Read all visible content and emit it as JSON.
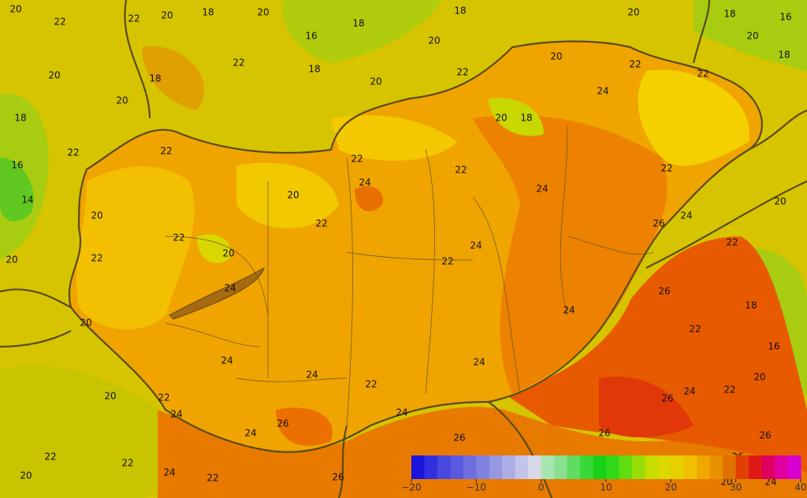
{
  "contour_labels": [
    20,
    22,
    22,
    20,
    18,
    20,
    18,
    18,
    20,
    18,
    16,
    16,
    20,
    20,
    18,
    20,
    22,
    22,
    18,
    22,
    22,
    20,
    18,
    20,
    24,
    20,
    18,
    20,
    18,
    22,
    22,
    22,
    22,
    22,
    16,
    24,
    24,
    20,
    14,
    20,
    20,
    24,
    26,
    22,
    22,
    22,
    24,
    20,
    22,
    22,
    20,
    26,
    24,
    18,
    24,
    20,
    22,
    16,
    24,
    24,
    24,
    22,
    20,
    22,
    24,
    26,
    20,
    22,
    24,
    24,
    26,
    24,
    26,
    26,
    26,
    22,
    22,
    24,
    22,
    20,
    26,
    20,
    26,
    24
  ],
  "colorbar": {
    "range": [
      -20,
      40
    ],
    "ticks": [
      {
        "value": -20,
        "label": "−20"
      },
      {
        "value": -10,
        "label": "−10"
      },
      0,
      10,
      20,
      30,
      40
    ],
    "colors": [
      "#1a14dc",
      "#3030e0",
      "#4848e0",
      "#5a5ae0",
      "#6e6ee0",
      "#8080e0",
      "#9898e0",
      "#aeaee6",
      "#c4c4ea",
      "#d8d8e8",
      "#a8e6b0",
      "#88e090",
      "#60dc60",
      "#38d838",
      "#18d018",
      "#30d818",
      "#60dc10",
      "#98dc08",
      "#c8dc00",
      "#dcd800",
      "#e6d000",
      "#f0c000",
      "#f0a800",
      "#e89000",
      "#e07000",
      "#e04000",
      "#e01818",
      "#e00060",
      "#e000a0",
      "#d800d0"
    ]
  }
}
